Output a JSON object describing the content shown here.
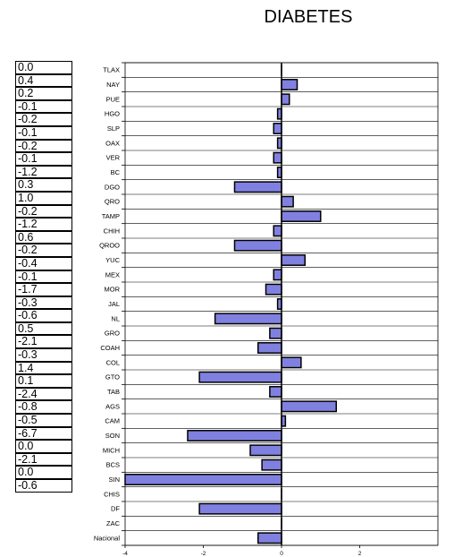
{
  "chart_data": {
    "type": "bar",
    "orientation": "horizontal",
    "title": "DIABETES",
    "xlabel": "",
    "ylabel": "",
    "xlim": [
      -4,
      4
    ],
    "xticks": [
      "-4",
      "-2",
      "0",
      "2"
    ],
    "grid": "horizontal",
    "bar_color": "#8080e0",
    "categories": [
      "TLAX",
      "NAY",
      "PUE",
      "HGO",
      "SLP",
      "OAX",
      "VER",
      "BC",
      "DGO",
      "QRO",
      "TAMP",
      "CHIH",
      "QROO",
      "YUC",
      "MEX",
      "MOR",
      "JAL",
      "NL",
      "GRO",
      "COAH",
      "COL",
      "GTO",
      "TAB",
      "AGS",
      "CAM",
      "SON",
      "MICH",
      "BCS",
      "SIN",
      "CHIS",
      "DF",
      "ZAC",
      "Nacional"
    ],
    "values": [
      0.0,
      0.4,
      0.2,
      -0.1,
      -0.2,
      -0.1,
      -0.2,
      -0.1,
      -1.2,
      0.3,
      1.0,
      -0.2,
      -1.2,
      0.6,
      -0.2,
      -0.4,
      -0.1,
      -1.7,
      -0.3,
      -0.6,
      0.5,
      -2.1,
      -0.3,
      1.4,
      0.1,
      -2.4,
      -0.8,
      -0.5,
      -6.7,
      0.0,
      -2.1,
      0.0,
      -0.6
    ],
    "value_labels": [
      "0.0",
      "0.4",
      "0.2",
      "-0.1",
      "-0.2",
      "-0.1",
      "-0.2",
      "-0.1",
      "-1.2",
      "0.3",
      "1.0",
      "-0.2",
      "-1.2",
      "0.6",
      "-0.2",
      "-0.4",
      "-0.1",
      "-1.7",
      "-0.3",
      "-0.6",
      "0.5",
      "-2.1",
      "-0.3",
      "1.4",
      "0.1",
      "-2.4",
      "-0.8",
      "-0.5",
      "-6.7",
      "0.0",
      "-2.1",
      "0.0",
      "-0.6"
    ]
  }
}
